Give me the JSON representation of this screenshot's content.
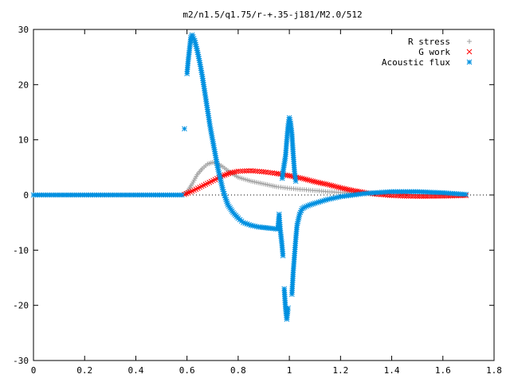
{
  "chart_data": {
    "type": "scatter",
    "title": "m2/n1.5/q1.75/r-+.35-j181/M2.0/512",
    "xlabel": "",
    "ylabel": "",
    "xlim": [
      0,
      1.8
    ],
    "ylim": [
      -30,
      30
    ],
    "xticks": [
      "0",
      "0.2",
      "0.4",
      "0.6",
      "0.8",
      "1",
      "1.2",
      "1.4",
      "1.6",
      "1.8"
    ],
    "yticks": [
      "-30",
      "-20",
      "-10",
      "0",
      "10",
      "20",
      "30"
    ],
    "grid": false,
    "legend_position": "top-right",
    "series": [
      {
        "name": "R stress",
        "marker": "plus",
        "color": "#a0a0a0",
        "points": [
          [
            0,
            0
          ],
          [
            0.1,
            0
          ],
          [
            0.2,
            0
          ],
          [
            0.3,
            0
          ],
          [
            0.4,
            0
          ],
          [
            0.5,
            0
          ],
          [
            0.58,
            0
          ],
          [
            0.6,
            0.5
          ],
          [
            0.62,
            2
          ],
          [
            0.64,
            3.7
          ],
          [
            0.66,
            4.8
          ],
          [
            0.68,
            5.6
          ],
          [
            0.7,
            5.9
          ],
          [
            0.72,
            5.7
          ],
          [
            0.74,
            5.1
          ],
          [
            0.76,
            4.4
          ],
          [
            0.78,
            3.8
          ],
          [
            0.8,
            3.2
          ],
          [
            0.85,
            2.5
          ],
          [
            0.9,
            2
          ],
          [
            0.95,
            1.5
          ],
          [
            1.0,
            1.2
          ],
          [
            1.05,
            1
          ],
          [
            1.1,
            0.8
          ],
          [
            1.15,
            0.6
          ],
          [
            1.2,
            0.45
          ],
          [
            1.25,
            0.3
          ],
          [
            1.3,
            0.2
          ],
          [
            1.4,
            0.1
          ],
          [
            1.5,
            0.05
          ],
          [
            1.6,
            0.02
          ],
          [
            1.69,
            0
          ]
        ]
      },
      {
        "name": "G work",
        "marker": "cross",
        "color": "#ff0000",
        "points": [
          [
            0.59,
            0.1
          ],
          [
            0.62,
            0.7
          ],
          [
            0.65,
            1.4
          ],
          [
            0.68,
            2.1
          ],
          [
            0.71,
            2.8
          ],
          [
            0.74,
            3.5
          ],
          [
            0.77,
            4
          ],
          [
            0.8,
            4.3
          ],
          [
            0.85,
            4.4
          ],
          [
            0.9,
            4.2
          ],
          [
            0.95,
            3.9
          ],
          [
            1.0,
            3.5
          ],
          [
            1.05,
            3
          ],
          [
            1.1,
            2.4
          ],
          [
            1.15,
            1.9
          ],
          [
            1.2,
            1.3
          ],
          [
            1.25,
            0.8
          ],
          [
            1.3,
            0.4
          ],
          [
            1.35,
            0.1
          ],
          [
            1.4,
            -0.1
          ],
          [
            1.45,
            -0.2
          ],
          [
            1.5,
            -0.25
          ],
          [
            1.6,
            -0.2
          ],
          [
            1.69,
            -0.1
          ]
        ]
      },
      {
        "name": "Acoustic flux",
        "marker": "star",
        "color": "#0090e0",
        "points": [
          [
            0,
            0
          ],
          [
            0.1,
            0
          ],
          [
            0.2,
            0
          ],
          [
            0.3,
            0
          ],
          [
            0.4,
            0
          ],
          [
            0.5,
            0
          ],
          [
            0.58,
            0
          ],
          [
            0.59,
            12
          ],
          [
            0.6,
            22
          ],
          [
            0.605,
            24.5
          ],
          [
            0.61,
            26.5
          ],
          [
            0.615,
            28.5
          ],
          [
            0.62,
            29
          ],
          [
            0.63,
            28
          ],
          [
            0.64,
            26.2
          ],
          [
            0.65,
            24
          ],
          [
            0.66,
            21.5
          ],
          [
            0.67,
            18.5
          ],
          [
            0.68,
            15.5
          ],
          [
            0.69,
            12.5
          ],
          [
            0.7,
            10
          ],
          [
            0.71,
            7.5
          ],
          [
            0.72,
            5
          ],
          [
            0.73,
            3
          ],
          [
            0.74,
            1
          ],
          [
            0.75,
            -0.5
          ],
          [
            0.76,
            -1.8
          ],
          [
            0.78,
            -3.2
          ],
          [
            0.8,
            -4.2
          ],
          [
            0.82,
            -5
          ],
          [
            0.85,
            -5.5
          ],
          [
            0.88,
            -5.8
          ],
          [
            0.9,
            -5.9
          ],
          [
            0.92,
            -6
          ],
          [
            0.94,
            -6.1
          ],
          [
            0.955,
            -6.2
          ],
          [
            0.96,
            -3.5
          ],
          [
            0.965,
            -6.5
          ],
          [
            0.97,
            -8.5
          ],
          [
            0.975,
            -11
          ],
          [
            0.98,
            -17
          ],
          [
            0.985,
            -20.5
          ],
          [
            0.99,
            -22.5
          ],
          [
            0.995,
            -20.5
          ],
          [
            0.972,
            3
          ],
          [
            0.978,
            5
          ],
          [
            0.985,
            7
          ],
          [
            0.99,
            10
          ],
          [
            0.995,
            12.5
          ],
          [
            1.0,
            14
          ],
          [
            1.005,
            13
          ],
          [
            1.01,
            11
          ],
          [
            1.015,
            7.5
          ],
          [
            1.02,
            4.3
          ],
          [
            1.025,
            2.5
          ],
          [
            1.01,
            -18
          ],
          [
            1.015,
            -14
          ],
          [
            1.02,
            -11
          ],
          [
            1.025,
            -8
          ],
          [
            1.03,
            -5.5
          ],
          [
            1.04,
            -3.5
          ],
          [
            1.05,
            -2.5
          ],
          [
            1.06,
            -2.2
          ],
          [
            1.08,
            -1.8
          ],
          [
            1.1,
            -1.5
          ],
          [
            1.15,
            -0.8
          ],
          [
            1.2,
            -0.3
          ],
          [
            1.3,
            0.3
          ],
          [
            1.4,
            0.6
          ],
          [
            1.5,
            0.6
          ],
          [
            1.6,
            0.4
          ],
          [
            1.69,
            0.1
          ]
        ]
      }
    ]
  }
}
